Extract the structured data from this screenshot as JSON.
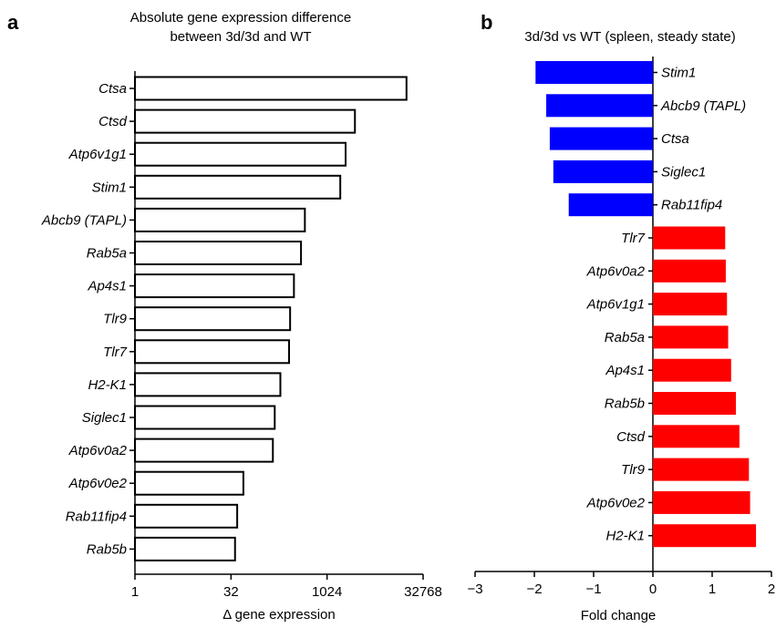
{
  "panels": {
    "a": {
      "letter": "a",
      "title_line1": "Absolute gene expression difference",
      "title_line2": "between 3d/3d and WT"
    },
    "b": {
      "letter": "b",
      "title": "3d/3d vs WT (spleen, steady state)"
    }
  },
  "chart_data": [
    {
      "id": "panel-a",
      "type": "bar",
      "orientation": "horizontal",
      "title": "Absolute gene expression difference between 3d/3d and WT",
      "xlabel": "Δ gene expression",
      "ylabel": "",
      "x_scale": "log2",
      "xlim": [
        1,
        32768
      ],
      "x_ticks": [
        1,
        32,
        1024,
        32768
      ],
      "x_tick_labels": [
        "1",
        "32",
        "1024",
        "32768"
      ],
      "grid": false,
      "bar_fill": "#ffffff",
      "bar_stroke": "#000000",
      "categories": [
        "Ctsa",
        "Ctsd",
        "Atp6v1g1",
        "Stim1",
        "Abcb9 (TAPL)",
        "Rab5a",
        "Ap4s1",
        "Tlr9",
        "Tlr7",
        "H2-K1",
        "Siglec1",
        "Atp6v0a2",
        "Atp6v0e2",
        "Rab11fip4",
        "Rab5b"
      ],
      "values": [
        18000,
        2800,
        2000,
        1650,
        460,
        400,
        310,
        270,
        260,
        190,
        155,
        145,
        50,
        40,
        37
      ]
    },
    {
      "id": "panel-b",
      "type": "bar",
      "orientation": "horizontal",
      "title": "3d/3d vs WT (spleen, steady state)",
      "xlabel": "Fold change",
      "ylabel": "",
      "xlim": [
        -3,
        2
      ],
      "x_ticks": [
        -3,
        -2,
        -1,
        0,
        1,
        2
      ],
      "x_tick_labels": [
        "−3",
        "−2",
        "−1",
        "0",
        "1",
        "2"
      ],
      "grid": false,
      "colors": {
        "negative": "#0000ff",
        "positive": "#ff0000"
      },
      "categories": [
        "Stim1",
        "Abcb9 (TAPL)",
        "Ctsa",
        "Siglec1",
        "Rab11fip4",
        "Tlr7",
        "Atp6v0a2",
        "Atp6v1g1",
        "Rab5a",
        "Ap4s1",
        "Rab5b",
        "Ctsd",
        "Tlr9",
        "Atp6v0e2",
        "H2-K1"
      ],
      "values": [
        -1.98,
        -1.8,
        -1.74,
        -1.68,
        -1.42,
        1.22,
        1.23,
        1.25,
        1.27,
        1.32,
        1.4,
        1.46,
        1.62,
        1.64,
        1.74
      ]
    }
  ]
}
